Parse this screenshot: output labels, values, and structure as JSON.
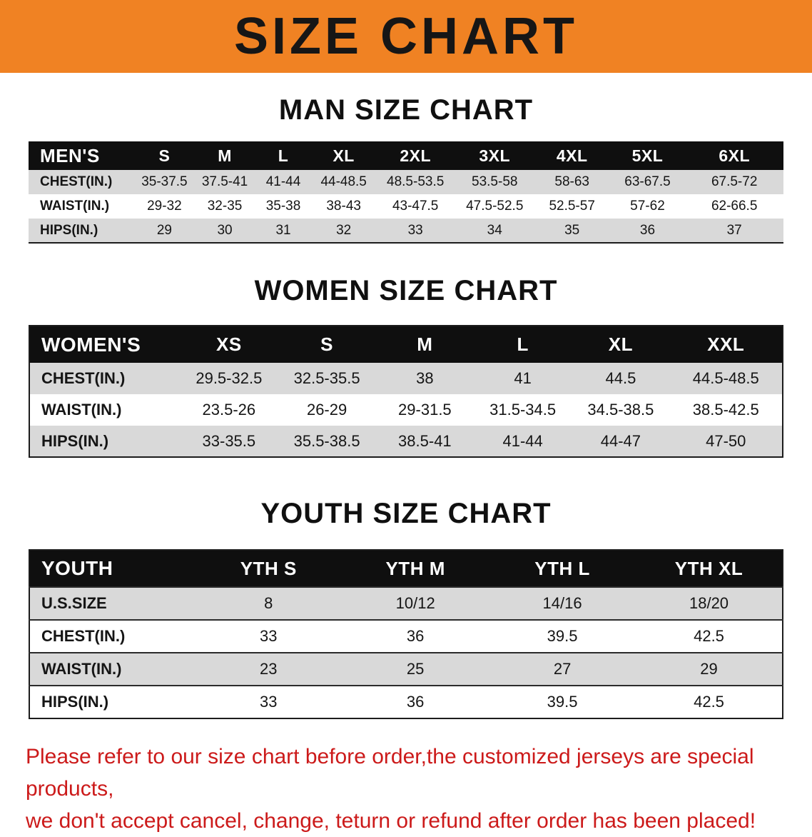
{
  "banner": {
    "title": "SIZE CHART"
  },
  "men": {
    "heading": "MAN SIZE CHART",
    "table": {
      "header": [
        "MEN'S",
        "S",
        "M",
        "L",
        "XL",
        "2XL",
        "3XL",
        "4XL",
        "5XL",
        "6XL"
      ],
      "rows": [
        [
          "CHEST(IN.)",
          "35-37.5",
          "37.5-41",
          "41-44",
          "44-48.5",
          "48.5-53.5",
          "53.5-58",
          "58-63",
          "63-67.5",
          "67.5-72"
        ],
        [
          "WAIST(IN.)",
          "29-32",
          "32-35",
          "35-38",
          "38-43",
          "43-47.5",
          "47.5-52.5",
          "52.5-57",
          "57-62",
          "62-66.5"
        ],
        [
          "HIPS(IN.)",
          "29",
          "30",
          "31",
          "32",
          "33",
          "34",
          "35",
          "36",
          "37"
        ]
      ]
    }
  },
  "women": {
    "heading": "WOMEN SIZE CHART",
    "table": {
      "header": [
        "WOMEN'S",
        "XS",
        "S",
        "M",
        "L",
        "XL",
        "XXL"
      ],
      "rows": [
        [
          "CHEST(IN.)",
          "29.5-32.5",
          "32.5-35.5",
          "38",
          "41",
          "44.5",
          "44.5-48.5"
        ],
        [
          "WAIST(IN.)",
          "23.5-26",
          "26-29",
          "29-31.5",
          "31.5-34.5",
          "34.5-38.5",
          "38.5-42.5"
        ],
        [
          "HIPS(IN.)",
          "33-35.5",
          "35.5-38.5",
          "38.5-41",
          "41-44",
          "44-47",
          "47-50"
        ]
      ]
    }
  },
  "youth": {
    "heading": "YOUTH SIZE CHART",
    "table": {
      "header": [
        "YOUTH",
        "YTH S",
        "YTH M",
        "YTH L",
        "YTH XL"
      ],
      "rows": [
        [
          "U.S.SIZE",
          "8",
          "10/12",
          "14/16",
          "18/20"
        ],
        [
          "CHEST(IN.)",
          "33",
          "36",
          "39.5",
          "42.5"
        ],
        [
          "WAIST(IN.)",
          "23",
          "25",
          "27",
          "29"
        ],
        [
          "HIPS(IN.)",
          "33",
          "36",
          "39.5",
          "42.5"
        ]
      ]
    }
  },
  "disclaimer": {
    "line1": "Please refer to our size chart before order,the customized jerseys are special products,",
    "line2": "we don't accept cancel, change, teturn or refund after order has been placed!"
  },
  "colors": {
    "banner_orange": "#f08223",
    "header_black": "#0f0f0f",
    "stripe_gray": "#d9d9d9",
    "disclaimer_red": "#cc1a1a"
  }
}
